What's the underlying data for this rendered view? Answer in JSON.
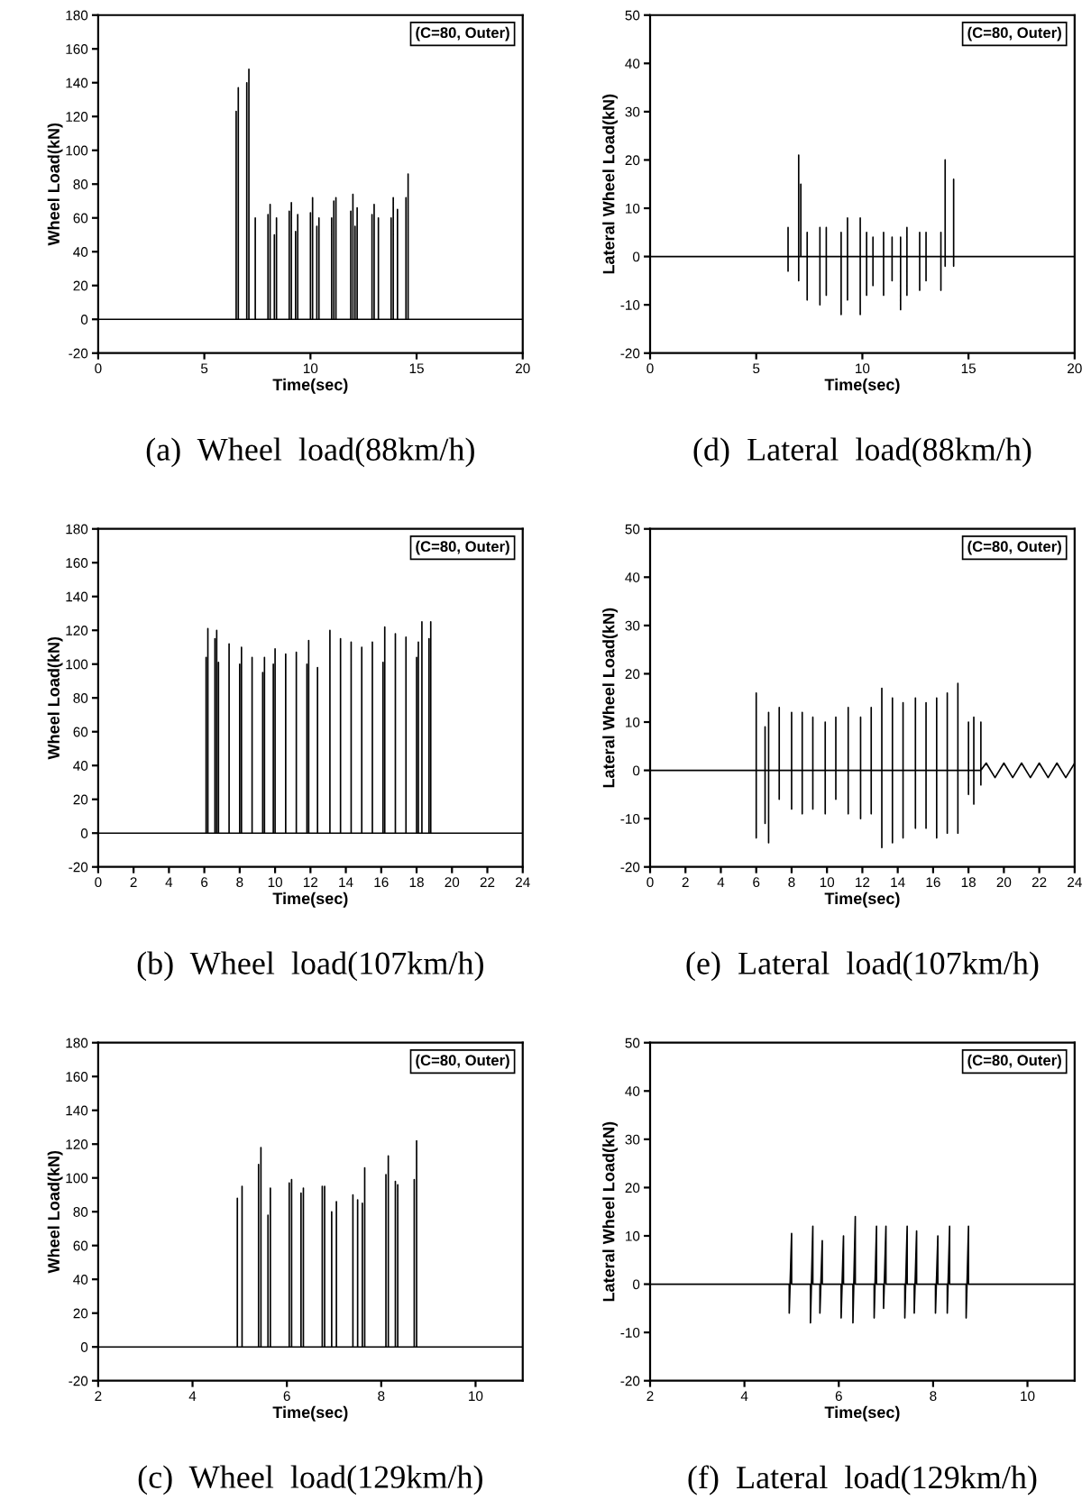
{
  "chart_data": [
    {
      "type": "line",
      "title": "(a)  Wheel  load(88km/h)",
      "xlabel": "Time(sec)",
      "ylabel": "Wheel Load(kN)",
      "annotations": [
        "(C=80, Outer)"
      ],
      "xlim": [
        0,
        20
      ],
      "xticks": [
        0,
        5,
        10,
        15,
        20
      ],
      "ylim": [
        -20,
        180
      ],
      "yticks": [
        -20,
        0,
        20,
        40,
        60,
        80,
        100,
        120,
        140,
        160,
        180
      ],
      "series": [
        {
          "color": "#000000",
          "x": [
            0,
            6.5,
            6.5,
            6.5,
            6.6,
            6.6,
            6.6,
            7.0,
            7.0,
            7.0,
            7.1,
            7.1,
            7.1,
            7.4,
            7.4,
            7.4,
            8.0,
            8.0,
            8.0,
            8.1,
            8.1,
            8.1,
            8.3,
            8.3,
            8.3,
            8.4,
            8.4,
            8.4,
            9.0,
            9.0,
            9.0,
            9.1,
            9.1,
            9.1,
            9.3,
            9.3,
            9.3,
            9.4,
            9.4,
            9.4,
            10.0,
            10.0,
            10.0,
            10.1,
            10.1,
            10.1,
            10.3,
            10.3,
            10.3,
            10.4,
            10.4,
            10.4,
            11.0,
            11.0,
            11.0,
            11.1,
            11.1,
            11.1,
            11.2,
            11.2,
            11.2,
            11.9,
            11.9,
            11.9,
            12.0,
            12.0,
            12.0,
            12.1,
            12.1,
            12.1,
            12.2,
            12.2,
            12.2,
            12.9,
            12.9,
            12.9,
            13.0,
            13.0,
            13.0,
            13.2,
            13.2,
            13.2,
            13.8,
            13.8,
            13.8,
            13.9,
            13.9,
            13.9,
            14.1,
            14.1,
            14.1,
            14.5,
            14.5,
            14.5,
            14.6,
            14.6,
            14.6,
            20
          ],
          "values": [
            0,
            0,
            123,
            0,
            0,
            137,
            0,
            0,
            140,
            0,
            0,
            148,
            0,
            0,
            60,
            0,
            0,
            62,
            0,
            0,
            68,
            0,
            0,
            50,
            0,
            0,
            60,
            0,
            0,
            64,
            0,
            0,
            69,
            0,
            0,
            52,
            0,
            0,
            62,
            0,
            0,
            63,
            0,
            0,
            72,
            0,
            0,
            55,
            0,
            0,
            60,
            0,
            0,
            60,
            0,
            0,
            70,
            0,
            0,
            72,
            0,
            0,
            64,
            0,
            0,
            74,
            0,
            0,
            55,
            0,
            0,
            66,
            0,
            0,
            62,
            0,
            0,
            68,
            0,
            0,
            60,
            0,
            0,
            60,
            0,
            0,
            72,
            0,
            0,
            65,
            0,
            0,
            72,
            0,
            0,
            86,
            0,
            0
          ]
        }
      ]
    },
    {
      "type": "line",
      "title": "(d)  Lateral  load(88km/h)",
      "xlabel": "Time(sec)",
      "ylabel": "Lateral Wheel Load(kN)",
      "annotations": [
        "(C=80, Outer)"
      ],
      "xlim": [
        0,
        20
      ],
      "xticks": [
        0,
        5,
        10,
        15,
        20
      ],
      "ylim": [
        -20,
        50
      ],
      "yticks": [
        -20,
        -10,
        0,
        10,
        20,
        30,
        40,
        50
      ],
      "series": [
        {
          "color": "#000000",
          "x": [
            0,
            6.5,
            6.5,
            6.5,
            6.5,
            7.0,
            7.0,
            7.0,
            7.0,
            7.1,
            7.1,
            7.1,
            7.4,
            7.4,
            7.4,
            7.4,
            8.0,
            8.0,
            8.0,
            8.0,
            8.3,
            8.3,
            8.3,
            8.3,
            9.0,
            9.0,
            9.0,
            9.0,
            9.3,
            9.3,
            9.3,
            9.3,
            9.9,
            9.9,
            9.9,
            9.9,
            10.2,
            10.2,
            10.2,
            10.2,
            10.5,
            10.5,
            10.5,
            10.5,
            11.0,
            11.0,
            11.0,
            11.0,
            11.4,
            11.4,
            11.4,
            11.4,
            11.8,
            11.8,
            11.8,
            11.8,
            12.1,
            12.1,
            12.1,
            12.1,
            12.7,
            12.7,
            12.7,
            12.7,
            13.0,
            13.0,
            13.0,
            13.0,
            13.7,
            13.7,
            13.7,
            13.7,
            13.9,
            13.9,
            13.9,
            13.9,
            14.3,
            14.3,
            14.3,
            14.3,
            20
          ],
          "values": [
            0,
            0,
            6,
            -3,
            0,
            0,
            21,
            -5,
            0,
            0,
            15,
            0,
            0,
            5,
            -9,
            0,
            0,
            6,
            -10,
            0,
            0,
            6,
            -8,
            0,
            0,
            5,
            -12,
            0,
            0,
            8,
            -9,
            0,
            0,
            8,
            -12,
            0,
            0,
            5,
            -8,
            0,
            0,
            4,
            -6,
            0,
            0,
            5,
            -8,
            0,
            0,
            4,
            -5,
            0,
            0,
            4,
            -11,
            0,
            0,
            6,
            -8,
            0,
            0,
            5,
            -7,
            0,
            0,
            5,
            -5,
            0,
            0,
            5,
            -7,
            0,
            0,
            20,
            -2,
            0,
            0,
            16,
            -2,
            0,
            0
          ]
        }
      ]
    },
    {
      "type": "line",
      "title": "(b)  Wheel  load(107km/h)",
      "xlabel": "Time(sec)",
      "ylabel": "Wheel Load(kN)",
      "annotations": [
        "(C=80, Outer)"
      ],
      "xlim": [
        0,
        24
      ],
      "xticks": [
        0,
        2,
        4,
        6,
        8,
        10,
        12,
        14,
        16,
        18,
        20,
        22,
        24
      ],
      "ylim": [
        -20,
        180
      ],
      "yticks": [
        -20,
        0,
        20,
        40,
        60,
        80,
        100,
        120,
        140,
        160,
        180
      ],
      "series": [
        {
          "color": "#000000",
          "x": [
            0,
            6.1,
            6.1,
            6.1,
            6.2,
            6.2,
            6.2,
            6.6,
            6.6,
            6.6,
            6.7,
            6.7,
            6.7,
            6.8,
            6.8,
            6.8,
            7.4,
            7.4,
            7.4,
            8.0,
            8.0,
            8.0,
            8.1,
            8.1,
            8.1,
            8.7,
            8.7,
            8.7,
            9.3,
            9.3,
            9.3,
            9.4,
            9.4,
            9.4,
            9.9,
            9.9,
            9.9,
            10.0,
            10.0,
            10.0,
            10.6,
            10.6,
            10.6,
            11.2,
            11.2,
            11.2,
            11.8,
            11.8,
            11.8,
            11.9,
            11.9,
            11.9,
            12.4,
            12.4,
            12.4,
            13.1,
            13.1,
            13.1,
            13.7,
            13.7,
            13.7,
            14.3,
            14.3,
            14.3,
            14.9,
            14.9,
            14.9,
            15.5,
            15.5,
            15.5,
            16.1,
            16.1,
            16.1,
            16.2,
            16.2,
            16.2,
            16.8,
            16.8,
            16.8,
            17.4,
            17.4,
            17.4,
            18.0,
            18.0,
            18.0,
            18.1,
            18.1,
            18.1,
            18.3,
            18.3,
            18.3,
            18.7,
            18.7,
            18.7,
            18.8,
            18.8,
            18.8,
            24
          ],
          "values": [
            0,
            0,
            104,
            0,
            0,
            121,
            0,
            0,
            115,
            0,
            0,
            120,
            0,
            0,
            101,
            0,
            0,
            112,
            0,
            0,
            100,
            0,
            0,
            110,
            0,
            0,
            104,
            0,
            0,
            95,
            0,
            0,
            104,
            0,
            0,
            100,
            0,
            0,
            109,
            0,
            0,
            106,
            0,
            0,
            107,
            0,
            0,
            100,
            0,
            0,
            114,
            0,
            0,
            98,
            0,
            0,
            120,
            0,
            0,
            115,
            0,
            0,
            113,
            0,
            0,
            110,
            0,
            0,
            113,
            0,
            0,
            101,
            0,
            0,
            122,
            0,
            0,
            118,
            0,
            0,
            116,
            0,
            0,
            104,
            0,
            0,
            113,
            0,
            0,
            125,
            0,
            0,
            115,
            0,
            0,
            125,
            0,
            0
          ]
        }
      ]
    },
    {
      "type": "line",
      "title": "(e)  Lateral  load(107km/h)",
      "xlabel": "Time(sec)",
      "ylabel": "Lateral Wheel Load(kN)",
      "annotations": [
        "(C=80, Outer)"
      ],
      "xlim": [
        0,
        24
      ],
      "xticks": [
        0,
        2,
        4,
        6,
        8,
        10,
        12,
        14,
        16,
        18,
        20,
        22,
        24
      ],
      "ylim": [
        -20,
        50
      ],
      "yticks": [
        -20,
        -10,
        0,
        10,
        20,
        30,
        40,
        50
      ],
      "series": [
        {
          "color": "#000000",
          "x": [
            0,
            6.0,
            6.0,
            6.0,
            6.0,
            6.5,
            6.5,
            6.5,
            6.5,
            6.7,
            6.7,
            6.7,
            6.7,
            7.3,
            7.3,
            7.3,
            7.3,
            8.0,
            8.0,
            8.0,
            8.0,
            8.6,
            8.6,
            8.6,
            8.6,
            9.2,
            9.2,
            9.2,
            9.2,
            9.9,
            9.9,
            9.9,
            9.9,
            10.5,
            10.5,
            10.5,
            10.5,
            11.2,
            11.2,
            11.2,
            11.2,
            11.9,
            11.9,
            11.9,
            11.9,
            12.5,
            12.5,
            12.5,
            12.5,
            13.1,
            13.1,
            13.1,
            13.1,
            13.7,
            13.7,
            13.7,
            13.7,
            14.3,
            14.3,
            14.3,
            14.3,
            15.0,
            15.0,
            15.0,
            15.0,
            15.6,
            15.6,
            15.6,
            15.6,
            16.2,
            16.2,
            16.2,
            16.2,
            16.8,
            16.8,
            16.8,
            16.8,
            17.4,
            17.4,
            17.4,
            17.4,
            18.0,
            18.0,
            18.0,
            18.0,
            18.3,
            18.3,
            18.3,
            18.3,
            18.7,
            18.7,
            18.7,
            18.7,
            19.0,
            19.5,
            20.0,
            20.5,
            21.0,
            21.5,
            22.0,
            22.5,
            23.0,
            23.5,
            24.0
          ],
          "values": [
            0,
            0,
            16,
            -14,
            0,
            0,
            9,
            -11,
            0,
            0,
            12,
            -15,
            0,
            0,
            13,
            -6,
            0,
            0,
            12,
            -8,
            0,
            0,
            12,
            -9,
            0,
            0,
            11,
            -8,
            0,
            0,
            10,
            -9,
            0,
            0,
            11,
            -6,
            0,
            0,
            13,
            -9,
            0,
            0,
            11,
            -10,
            0,
            0,
            13,
            -9,
            0,
            0,
            17,
            -16,
            0,
            0,
            15,
            -15,
            0,
            0,
            14,
            -14,
            0,
            0,
            15,
            -12,
            0,
            0,
            14,
            -12,
            0,
            0,
            15,
            -14,
            0,
            0,
            16,
            -13,
            0,
            0,
            18,
            -13,
            0,
            0,
            10,
            -5,
            0,
            0,
            11,
            -7,
            0,
            0,
            10,
            -3,
            0,
            1.5,
            -1.5,
            1.5,
            -1.5,
            1.5,
            -1.5,
            1.5,
            -1.5,
            1.5,
            -1.5,
            1.5
          ]
        }
      ]
    },
    {
      "type": "line",
      "title": "(c)  Wheel  load(129km/h)",
      "xlabel": "Time(sec)",
      "ylabel": "Wheel Load(kN)",
      "annotations": [
        "(C=80, Outer)"
      ],
      "xlim": [
        2,
        11
      ],
      "xticks": [
        2,
        4,
        6,
        8,
        10
      ],
      "ylim": [
        -20,
        180
      ],
      "yticks": [
        -20,
        0,
        20,
        40,
        60,
        80,
        100,
        120,
        140,
        160,
        180
      ],
      "series": [
        {
          "color": "#000000",
          "x": [
            2,
            4.95,
            4.95,
            4.95,
            5.05,
            5.05,
            5.05,
            5.4,
            5.4,
            5.4,
            5.45,
            5.45,
            5.45,
            5.6,
            5.6,
            5.6,
            5.65,
            5.65,
            5.65,
            6.05,
            6.05,
            6.05,
            6.1,
            6.1,
            6.1,
            6.3,
            6.3,
            6.3,
            6.35,
            6.35,
            6.35,
            6.75,
            6.75,
            6.75,
            6.8,
            6.8,
            6.8,
            6.95,
            6.95,
            6.95,
            7.05,
            7.05,
            7.05,
            7.4,
            7.4,
            7.4,
            7.5,
            7.5,
            7.5,
            7.6,
            7.6,
            7.6,
            7.65,
            7.65,
            7.65,
            8.1,
            8.1,
            8.1,
            8.15,
            8.15,
            8.15,
            8.3,
            8.3,
            8.3,
            8.35,
            8.35,
            8.35,
            8.7,
            8.7,
            8.7,
            8.75,
            8.75,
            8.75,
            11
          ],
          "values": [
            0,
            0,
            88,
            0,
            0,
            95,
            0,
            0,
            108,
            0,
            0,
            118,
            0,
            0,
            78,
            0,
            0,
            94,
            0,
            0,
            97,
            0,
            0,
            99,
            0,
            0,
            91,
            0,
            0,
            94,
            0,
            0,
            95,
            0,
            0,
            95,
            0,
            0,
            80,
            0,
            0,
            86,
            0,
            0,
            90,
            0,
            0,
            87,
            0,
            0,
            85,
            0,
            0,
            106,
            0,
            0,
            102,
            0,
            0,
            113,
            0,
            0,
            98,
            0,
            0,
            96,
            0,
            0,
            99,
            0,
            0,
            122,
            0,
            0
          ]
        }
      ]
    },
    {
      "type": "line",
      "title": "(f)  Lateral  load(129km/h)",
      "xlabel": "Time(sec)",
      "ylabel": "Lateral Wheel Load(kN)",
      "annotations": [
        "(C=80, Outer)"
      ],
      "xlim": [
        2,
        11
      ],
      "xticks": [
        2,
        4,
        6,
        8,
        10
      ],
      "ylim": [
        -20,
        50
      ],
      "yticks": [
        -20,
        -10,
        0,
        10,
        20,
        30,
        40,
        50
      ],
      "series": [
        {
          "color": "#000000",
          "x": [
            2,
            4.95,
            4.95,
            5.0,
            5.0,
            5.4,
            5.4,
            5.45,
            5.45,
            5.6,
            5.6,
            5.65,
            5.65,
            6.05,
            6.05,
            6.1,
            6.1,
            6.3,
            6.3,
            6.35,
            6.35,
            6.75,
            6.75,
            6.8,
            6.8,
            6.95,
            6.95,
            7.0,
            7.0,
            7.4,
            7.4,
            7.45,
            7.45,
            7.6,
            7.6,
            7.65,
            7.65,
            8.05,
            8.05,
            8.1,
            8.1,
            8.3,
            8.3,
            8.35,
            8.35,
            8.7,
            8.7,
            8.75,
            8.75,
            11
          ],
          "values": [
            0,
            0,
            -6,
            10.5,
            0,
            0,
            -8,
            12,
            0,
            0,
            -6,
            9,
            0,
            0,
            -7,
            10,
            0,
            0,
            -8,
            14,
            0,
            0,
            -7,
            12,
            0,
            0,
            -5,
            12,
            0,
            0,
            -7,
            12,
            0,
            0,
            -6,
            11,
            0,
            0,
            -6,
            10,
            0,
            0,
            -6,
            12,
            0,
            0,
            -7,
            12,
            0,
            0
          ]
        }
      ]
    }
  ]
}
